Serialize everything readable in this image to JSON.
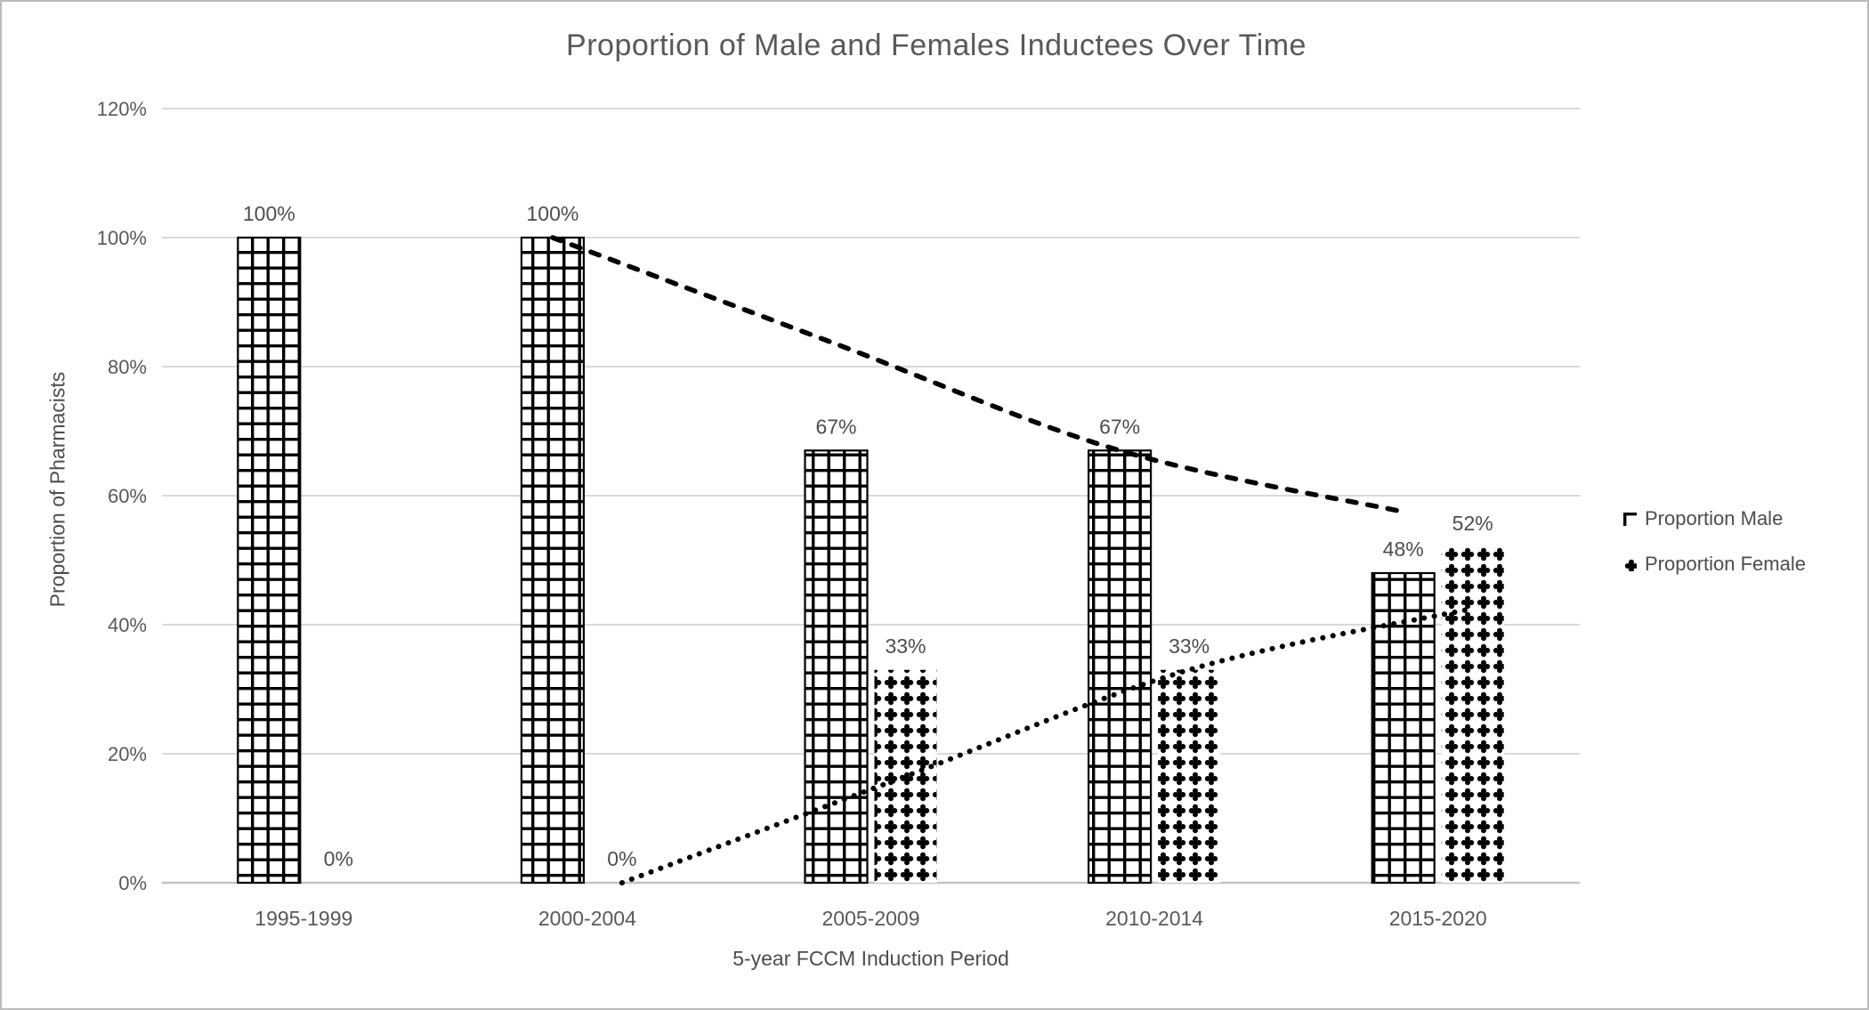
{
  "chart_data": {
    "type": "bar",
    "title": "Proportion of Male and Females Inductees Over Time",
    "xlabel": "5-year FCCM Induction Period",
    "ylabel": "Proportion of Pharmacists",
    "categories": [
      "1995-1999",
      "2000-2004",
      "2005-2009",
      "2010-2014",
      "2015-2020"
    ],
    "series": [
      {
        "name": "Proportion Male",
        "pattern": "small-grid",
        "values": [
          100,
          100,
          67,
          67,
          48
        ],
        "data_labels": [
          "100%",
          "100%",
          "67%",
          "67%",
          "48%"
        ]
      },
      {
        "name": "Proportion Female",
        "pattern": "solid-diamond-divot",
        "values": [
          0,
          0,
          33,
          33,
          52
        ],
        "data_labels": [
          "0%",
          "0%",
          "33%",
          "33%",
          "52%"
        ]
      }
    ],
    "trendlines": [
      {
        "series": "Proportion Male",
        "kind": "moving-average-2",
        "style": "dashed",
        "points": [
          [
            1,
            100
          ],
          [
            2,
            83.5
          ],
          [
            3,
            67
          ],
          [
            4,
            57.5
          ]
        ]
      },
      {
        "series": "Proportion Female",
        "kind": "moving-average-2",
        "style": "dotted",
        "points": [
          [
            1,
            0
          ],
          [
            2,
            16.5
          ],
          [
            3,
            33
          ],
          [
            4,
            42.5
          ]
        ]
      }
    ],
    "ylim": [
      0,
      120
    ],
    "yticks": [
      "0%",
      "20%",
      "40%",
      "60%",
      "80%",
      "100%",
      "120%"
    ],
    "ytick_values": [
      0,
      20,
      40,
      60,
      80,
      100,
      120
    ],
    "grid": true,
    "legend_position": "right"
  },
  "legend": {
    "items": [
      {
        "label": "Proportion Male",
        "icon": "grid-pattern-icon"
      },
      {
        "label": "Proportion Female",
        "icon": "diamond-pattern-icon"
      }
    ]
  },
  "colors": {
    "pattern_ink": "#000000",
    "background": "#ffffff",
    "gridline": "#d9d9d9",
    "axis_line": "#c3c3c3",
    "title_text": "#595959",
    "axis_text": "#595959",
    "data_label_text": "#4d4d4d",
    "frame_border": "#bcbcbc"
  }
}
